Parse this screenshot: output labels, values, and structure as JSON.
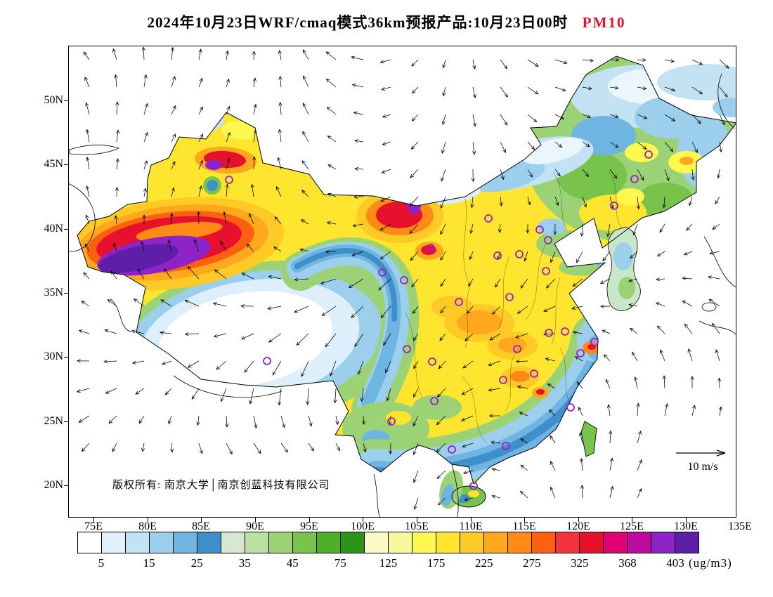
{
  "title": {
    "main": "2024年10月23日WRF/cmaq模式36km预报产品:10月23日00时",
    "pollutant": "PM10",
    "pollutant_color": "#e8112d"
  },
  "map": {
    "lat_labels": [
      "50N",
      "45N",
      "40N",
      "35N",
      "30N",
      "25N",
      "20N"
    ],
    "lon_labels": [
      "75E",
      "80E",
      "85E",
      "90E",
      "95E",
      "100E",
      "105E",
      "110E",
      "115E",
      "120E",
      "125E",
      "130E",
      "135E"
    ],
    "copyright": "版权所有: 南京大学│南京创蓝科技有限公司",
    "wind_reference": "10 m/s"
  },
  "colorbar": {
    "ticks": [
      "5",
      "15",
      "25",
      "35",
      "45",
      "75",
      "125",
      "175",
      "225",
      "275",
      "325",
      "368",
      "403"
    ],
    "unit": "(ug/m3)",
    "cell_colors": [
      "#FFFFFF",
      "#E1F0FA",
      "#C3E3F5",
      "#9BCFEC",
      "#6FB5E1",
      "#3F8FCB",
      "#D8E8D0",
      "#BCDFA2",
      "#9CD276",
      "#77C34C",
      "#4FAE2B",
      "#2E9417",
      "#FBFBC8",
      "#F8F8A0",
      "#FFF84F",
      "#FFE52E",
      "#FFC926",
      "#FFA81E",
      "#FF8A16",
      "#FF5F10",
      "#F5333F",
      "#E8112D",
      "#E00073",
      "#BC0CA0",
      "#8E24C8",
      "#5E1EA8"
    ]
  }
}
